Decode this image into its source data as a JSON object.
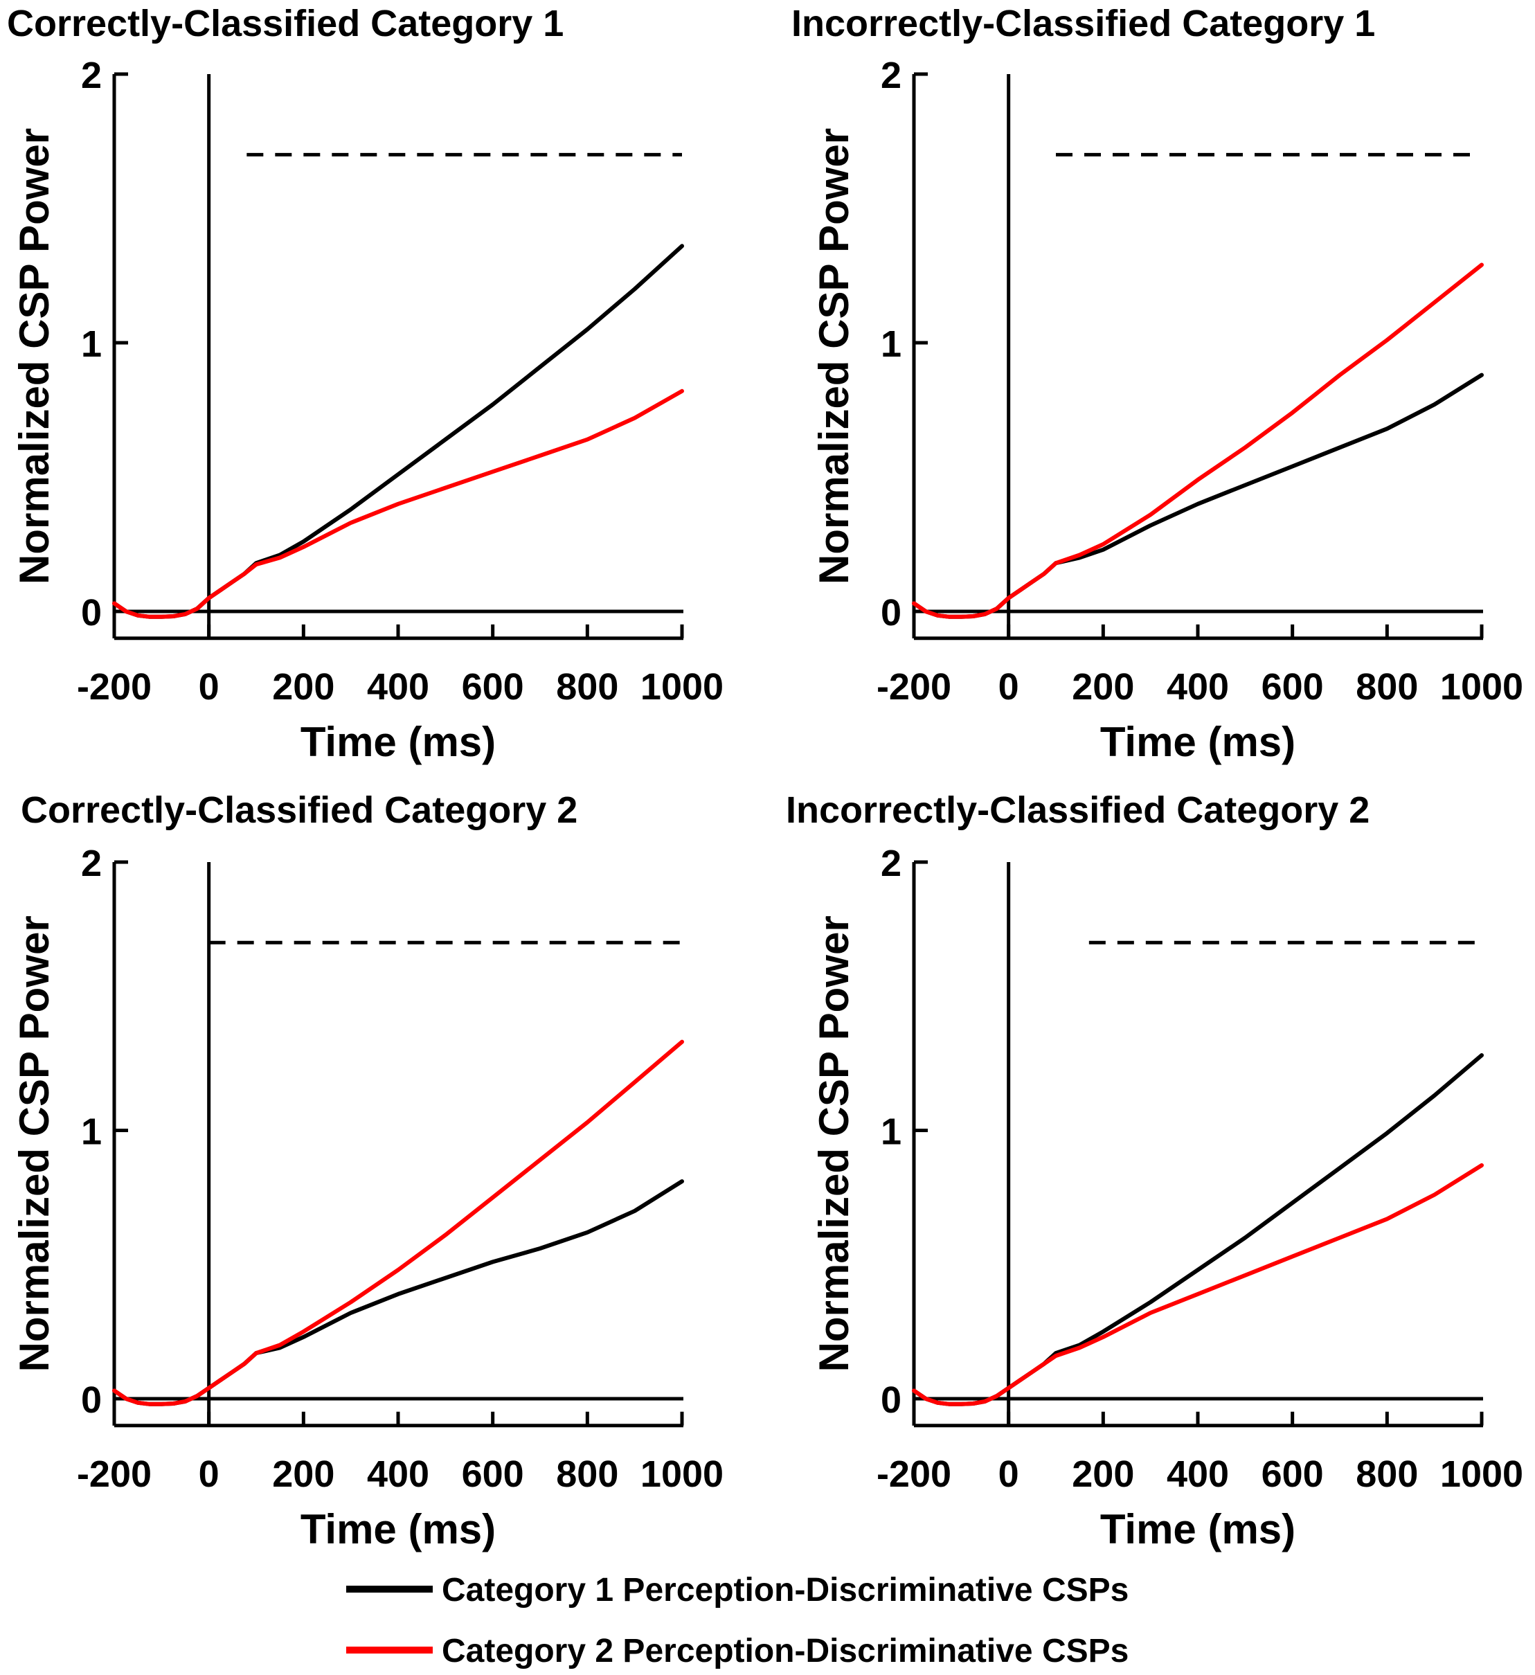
{
  "chart_data": [
    {
      "type": "line",
      "title": "Correctly-Classified Category 1",
      "xlabel": "Time (ms)",
      "ylabel": "Normalized CSP Power",
      "xlim": [
        -200,
        1000
      ],
      "ylim": [
        -0.1,
        2
      ],
      "xticks": [
        "-200",
        "0",
        "200",
        "400",
        "600",
        "800",
        "1000"
      ],
      "yticks": [
        "0",
        "1",
        "2"
      ],
      "significance_bar": {
        "y": 1.7,
        "x_start": 80,
        "x_end": 1000
      },
      "series": [
        {
          "name": "Category 1 Perception-Discriminative CSPs",
          "color": "#000000",
          "x": [
            -200,
            -175,
            -150,
            -125,
            -100,
            -75,
            -50,
            -25,
            0,
            25,
            50,
            75,
            100,
            150,
            200,
            300,
            400,
            500,
            600,
            700,
            800,
            900,
            1000
          ],
          "y": [
            0.03,
            0.0,
            -0.015,
            -0.02,
            -0.02,
            -0.018,
            -0.01,
            0.01,
            0.05,
            0.08,
            0.11,
            0.14,
            0.18,
            0.21,
            0.26,
            0.38,
            0.51,
            0.64,
            0.77,
            0.91,
            1.05,
            1.2,
            1.36
          ]
        },
        {
          "name": "Category 2 Perception-Discriminative CSPs",
          "color": "#ff0000",
          "x": [
            -200,
            -175,
            -150,
            -125,
            -100,
            -75,
            -50,
            -25,
            0,
            25,
            50,
            75,
            100,
            150,
            200,
            300,
            400,
            500,
            600,
            700,
            800,
            900,
            1000
          ],
          "y": [
            0.03,
            0.0,
            -0.015,
            -0.02,
            -0.02,
            -0.018,
            -0.01,
            0.01,
            0.05,
            0.08,
            0.11,
            0.14,
            0.175,
            0.2,
            0.24,
            0.33,
            0.4,
            0.46,
            0.52,
            0.58,
            0.64,
            0.72,
            0.82
          ]
        }
      ]
    },
    {
      "type": "line",
      "title": "Incorrectly-Classified Category 1",
      "xlabel": "Time (ms)",
      "ylabel": "Normalized CSP Power",
      "xlim": [
        -200,
        1000
      ],
      "ylim": [
        -0.1,
        2
      ],
      "xticks": [
        "-200",
        "0",
        "200",
        "400",
        "600",
        "800",
        "1000"
      ],
      "yticks": [
        "0",
        "1",
        "2"
      ],
      "significance_bar": {
        "y": 1.7,
        "x_start": 100,
        "x_end": 1000
      },
      "series": [
        {
          "name": "Category 1 Perception-Discriminative CSPs",
          "color": "#000000",
          "x": [
            -200,
            -175,
            -150,
            -125,
            -100,
            -75,
            -50,
            -25,
            0,
            25,
            50,
            75,
            100,
            150,
            200,
            300,
            400,
            500,
            600,
            700,
            800,
            900,
            1000
          ],
          "y": [
            0.03,
            0.0,
            -0.015,
            -0.02,
            -0.02,
            -0.018,
            -0.01,
            0.01,
            0.05,
            0.08,
            0.11,
            0.14,
            0.18,
            0.2,
            0.23,
            0.32,
            0.4,
            0.47,
            0.54,
            0.61,
            0.68,
            0.77,
            0.88
          ]
        },
        {
          "name": "Category 2 Perception-Discriminative CSPs",
          "color": "#ff0000",
          "x": [
            -200,
            -175,
            -150,
            -125,
            -100,
            -75,
            -50,
            -25,
            0,
            25,
            50,
            75,
            100,
            150,
            200,
            300,
            400,
            500,
            600,
            700,
            800,
            900,
            1000
          ],
          "y": [
            0.03,
            0.0,
            -0.015,
            -0.02,
            -0.02,
            -0.018,
            -0.01,
            0.01,
            0.05,
            0.08,
            0.11,
            0.14,
            0.18,
            0.21,
            0.25,
            0.36,
            0.49,
            0.61,
            0.74,
            0.88,
            1.01,
            1.15,
            1.29
          ]
        }
      ]
    },
    {
      "type": "line",
      "title": "Correctly-Classified Category 2",
      "xlabel": "Time (ms)",
      "ylabel": "Normalized CSP Power",
      "xlim": [
        -200,
        1000
      ],
      "ylim": [
        -0.1,
        2
      ],
      "xticks": [
        "-200",
        "0",
        "200",
        "400",
        "600",
        "800",
        "1000"
      ],
      "yticks": [
        "0",
        "1",
        "2"
      ],
      "significance_bar": {
        "y": 1.7,
        "x_start": 0,
        "x_end": 1000
      },
      "series": [
        {
          "name": "Category 1 Perception-Discriminative CSPs",
          "color": "#000000",
          "x": [
            -200,
            -175,
            -150,
            -125,
            -100,
            -75,
            -50,
            -25,
            0,
            25,
            50,
            75,
            100,
            150,
            200,
            300,
            400,
            500,
            600,
            700,
            800,
            900,
            1000
          ],
          "y": [
            0.03,
            0.0,
            -0.015,
            -0.02,
            -0.02,
            -0.018,
            -0.01,
            0.01,
            0.04,
            0.07,
            0.1,
            0.13,
            0.17,
            0.19,
            0.23,
            0.32,
            0.39,
            0.45,
            0.51,
            0.56,
            0.62,
            0.7,
            0.81
          ]
        },
        {
          "name": "Category 2 Perception-Discriminative CSPs",
          "color": "#ff0000",
          "x": [
            -200,
            -175,
            -150,
            -125,
            -100,
            -75,
            -50,
            -25,
            0,
            25,
            50,
            75,
            100,
            150,
            200,
            300,
            400,
            500,
            600,
            700,
            800,
            900,
            1000
          ],
          "y": [
            0.03,
            0.0,
            -0.015,
            -0.02,
            -0.02,
            -0.018,
            -0.01,
            0.01,
            0.04,
            0.07,
            0.1,
            0.13,
            0.17,
            0.2,
            0.25,
            0.36,
            0.48,
            0.61,
            0.75,
            0.89,
            1.03,
            1.18,
            1.33
          ]
        }
      ]
    },
    {
      "type": "line",
      "title": "Incorrectly-Classified Category 2",
      "xlabel": "Time (ms)",
      "ylabel": "Normalized CSP Power",
      "xlim": [
        -200,
        1000
      ],
      "ylim": [
        -0.1,
        2
      ],
      "xticks": [
        "-200",
        "0",
        "200",
        "400",
        "600",
        "800",
        "1000"
      ],
      "yticks": [
        "0",
        "1",
        "2"
      ],
      "significance_bar": {
        "y": 1.7,
        "x_start": 170,
        "x_end": 1000
      },
      "series": [
        {
          "name": "Category 1 Perception-Discriminative CSPs",
          "color": "#000000",
          "x": [
            -200,
            -175,
            -150,
            -125,
            -100,
            -75,
            -50,
            -25,
            0,
            25,
            50,
            75,
            100,
            150,
            200,
            300,
            400,
            500,
            600,
            700,
            800,
            900,
            1000
          ],
          "y": [
            0.03,
            0.0,
            -0.015,
            -0.02,
            -0.02,
            -0.018,
            -0.01,
            0.01,
            0.04,
            0.07,
            0.1,
            0.13,
            0.17,
            0.2,
            0.25,
            0.36,
            0.48,
            0.6,
            0.73,
            0.86,
            0.99,
            1.13,
            1.28
          ]
        },
        {
          "name": "Category 2 Perception-Discriminative CSPs",
          "color": "#ff0000",
          "x": [
            -200,
            -175,
            -150,
            -125,
            -100,
            -75,
            -50,
            -25,
            0,
            25,
            50,
            75,
            100,
            150,
            200,
            300,
            400,
            500,
            600,
            700,
            800,
            900,
            1000
          ],
          "y": [
            0.03,
            0.0,
            -0.015,
            -0.02,
            -0.02,
            -0.018,
            -0.01,
            0.01,
            0.04,
            0.07,
            0.1,
            0.13,
            0.16,
            0.19,
            0.23,
            0.32,
            0.39,
            0.46,
            0.53,
            0.6,
            0.67,
            0.76,
            0.87
          ]
        }
      ]
    }
  ],
  "legend": [
    {
      "label": "Category 1 Perception-Discriminative CSPs",
      "color": "#000000"
    },
    {
      "label": "Category 2 Perception-Discriminative CSPs",
      "color": "#ff0000"
    }
  ]
}
